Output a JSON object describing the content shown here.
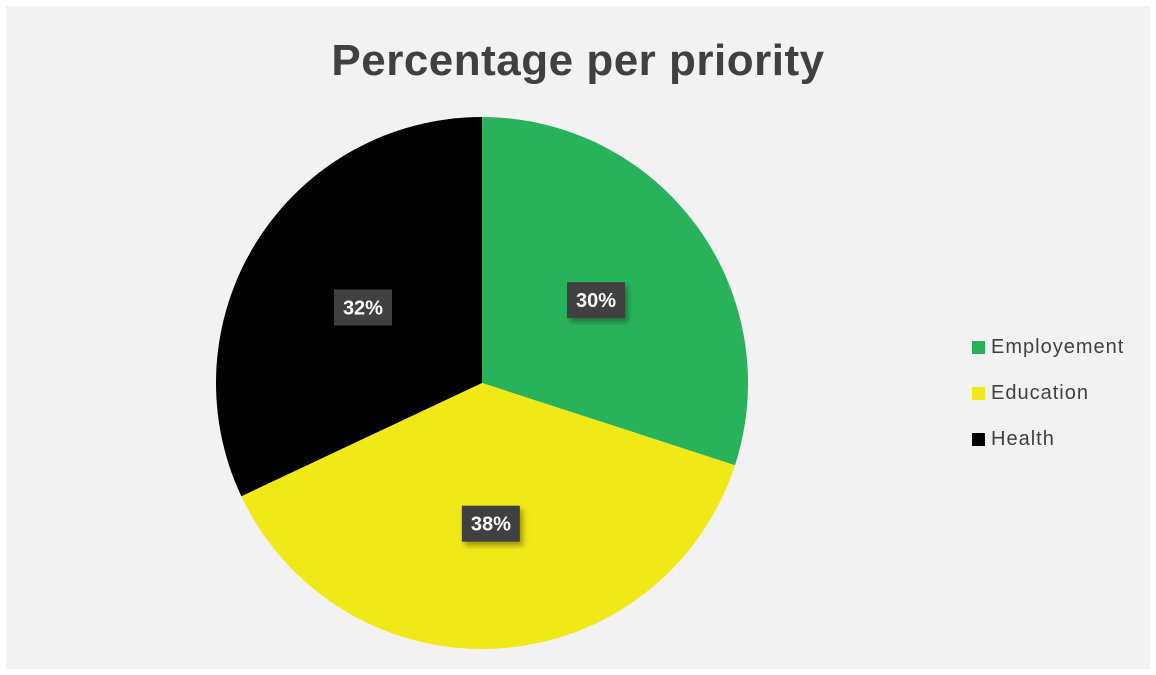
{
  "chart_data": {
    "type": "pie",
    "title": "Percentage per priority",
    "categories": [
      "Employement",
      "Education",
      "Health"
    ],
    "values": [
      30,
      38,
      32
    ],
    "labels": [
      "30%",
      "38%",
      "32%"
    ],
    "colors": [
      "#28b35b",
      "#f1e817",
      "#000000"
    ],
    "legend": "right"
  }
}
